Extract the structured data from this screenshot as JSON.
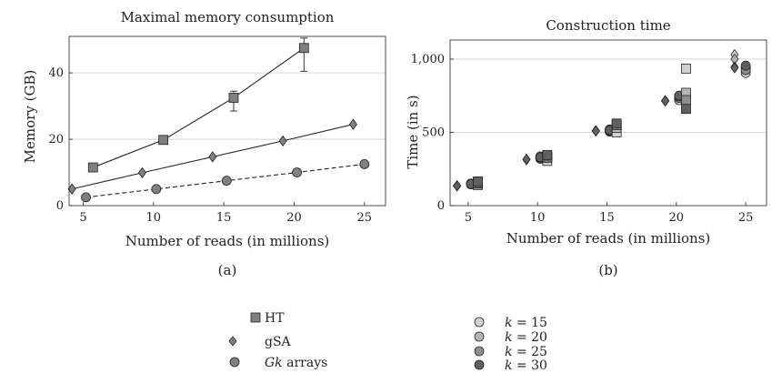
{
  "chart_data": [
    {
      "id": "a",
      "type": "line",
      "title": "Maximal memory consumption",
      "xlabel": "Number of reads (in millions)",
      "ylabel": "Memory (GB)",
      "subcaption": "(a)",
      "xlim": [
        4,
        26.5
      ],
      "ylim": [
        0,
        51
      ],
      "xticks": [
        5,
        10,
        15,
        20,
        25
      ],
      "yticks": [
        0,
        20,
        40
      ],
      "ytick_labels": [
        "0",
        "20",
        "40"
      ],
      "grid": "horizontal",
      "series": [
        {
          "name": "HT",
          "marker": "square",
          "line": "solid",
          "x": [
            5.7,
            10.7,
            15.7,
            20.7
          ],
          "y": [
            11.5,
            19.8,
            32.5,
            47.5
          ],
          "error": [
            null,
            null,
            [
              28.5,
              34.5
            ],
            [
              40.5,
              50.5
            ]
          ]
        },
        {
          "name": "gSA",
          "marker": "diamond",
          "line": "solid",
          "x": [
            4.2,
            9.2,
            14.2,
            19.2,
            24.2
          ],
          "y": [
            5.0,
            9.9,
            14.7,
            19.5,
            24.5
          ]
        },
        {
          "name": "Gk arrays",
          "marker": "circle",
          "line": "dashed",
          "x": [
            5.2,
            10.2,
            15.2,
            20.2,
            25.0
          ],
          "y": [
            2.5,
            5.0,
            7.5,
            10.0,
            12.5
          ]
        }
      ]
    },
    {
      "id": "b",
      "type": "scatter",
      "title": "Construction time",
      "xlabel": "Number of reads (in millions)",
      "ylabel": "Time (in s)",
      "subcaption": "(b)",
      "xlim": [
        3.7,
        26.5
      ],
      "ylim": [
        0,
        1130
      ],
      "xticks": [
        5,
        10,
        15,
        20,
        25
      ],
      "yticks": [
        0,
        500,
        1000
      ],
      "ytick_labels": [
        "0",
        "500",
        "1,000"
      ],
      "grid": "horizontal",
      "series": [
        {
          "name": "gSA",
          "marker": "diamond",
          "k": [
            15,
            20,
            25,
            30
          ],
          "x": [
            4.2,
            9.2,
            14.2,
            19.2,
            24.2
          ],
          "y": [
            [
              135,
              135,
              135,
              135
            ],
            [
              315,
              315,
              315,
              315
            ],
            [
              510,
              510,
              510,
              510
            ],
            [
              715,
              715,
              715,
              715
            ],
            [
              1030,
              1000,
              945,
              940
            ]
          ]
        },
        {
          "name": "Gk arrays",
          "marker": "circle",
          "k": [
            15,
            20,
            25,
            30
          ],
          "x": [
            5.2,
            10.2,
            15.2,
            20.2,
            25.0
          ],
          "y": [
            [
              145,
              150,
              150,
              148
            ],
            [
              320,
              335,
              325,
              330
            ],
            [
              505,
              520,
              510,
              515
            ],
            [
              720,
              735,
              745,
              750
            ],
            [
              905,
              940,
              925,
              955
            ]
          ]
        },
        {
          "name": "HT",
          "marker": "square",
          "k": [
            15,
            20,
            25,
            30
          ],
          "x": [
            5.7,
            10.7,
            15.7,
            20.7
          ],
          "y": [
            [
              140,
              150,
              155,
              165
            ],
            [
              305,
              325,
              335,
              345
            ],
            [
              500,
              530,
              550,
              560
            ],
            [
              935,
              770,
              720,
              660
            ]
          ]
        }
      ]
    }
  ],
  "legend": {
    "methods": [
      {
        "marker": "square",
        "label": "HT"
      },
      {
        "marker": "diamond",
        "label": "gSA"
      },
      {
        "marker": "circle",
        "label": "Gk arrays",
        "italic_prefix": "Gk",
        "rest": " arrays"
      }
    ],
    "k_values": [
      {
        "prefix": "k",
        "rest": " = 15",
        "shade": "#d2d2d2"
      },
      {
        "prefix": "k",
        "rest": " = 20",
        "shade": "#b4b4b4"
      },
      {
        "prefix": "k",
        "rest": " = 25",
        "shade": "#8e8e8e"
      },
      {
        "prefix": "k",
        "rest": " = 30",
        "shade": "#606060"
      }
    ]
  },
  "colors": {
    "marker_mid": "#808080",
    "k15": "#d2d2d2",
    "k20": "#b4b4b4",
    "k25": "#8e8e8e",
    "k30": "#606060",
    "grid": "#cccccc"
  }
}
